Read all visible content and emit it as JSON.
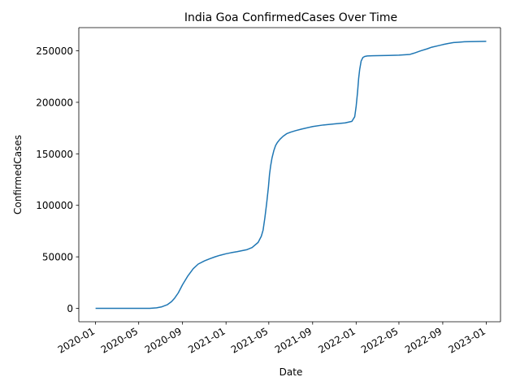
{
  "chart_data": {
    "type": "line",
    "title": "India Goa ConfirmedCases Over Time",
    "xlabel": "Date",
    "ylabel": "ConfirmedCases",
    "xlim": [
      "2019-11-15",
      "2023-02-10"
    ],
    "ylim": [
      -13000,
      272500
    ],
    "grid": false,
    "legend": "none",
    "x_ticks": [
      "2020-01",
      "2020-05",
      "2020-09",
      "2021-01",
      "2021-05",
      "2021-09",
      "2022-01",
      "2022-05",
      "2022-09",
      "2023-01"
    ],
    "y_ticks": [
      0,
      50000,
      100000,
      150000,
      200000,
      250000
    ],
    "line_color": "#1f77b4",
    "series": [
      {
        "x": [
          "2020-01-01",
          "2020-03-01",
          "2020-05-15",
          "2020-06-01",
          "2020-06-20",
          "2020-07-05",
          "2020-07-20",
          "2020-08-01",
          "2020-08-10",
          "2020-08-20",
          "2020-09-01",
          "2020-09-15",
          "2020-10-01",
          "2020-10-15",
          "2020-11-01",
          "2020-11-15",
          "2020-12-01",
          "2020-12-15",
          "2021-01-01",
          "2021-01-15",
          "2021-02-01",
          "2021-02-15",
          "2021-03-01",
          "2021-03-15",
          "2021-04-01",
          "2021-04-10",
          "2021-04-15",
          "2021-04-20",
          "2021-04-25",
          "2021-04-30",
          "2021-05-03",
          "2021-05-06",
          "2021-05-10",
          "2021-05-15",
          "2021-05-20",
          "2021-05-25",
          "2021-06-01",
          "2021-06-10",
          "2021-06-20",
          "2021-07-01",
          "2021-07-15",
          "2021-08-01",
          "2021-09-01",
          "2021-10-01",
          "2021-11-01",
          "2021-12-01",
          "2021-12-20",
          "2021-12-28",
          "2022-01-01",
          "2022-01-05",
          "2022-01-08",
          "2022-01-11",
          "2022-01-15",
          "2022-01-20",
          "2022-01-25",
          "2022-02-01",
          "2022-02-15",
          "2022-03-01",
          "2022-04-01",
          "2022-05-01",
          "2022-06-01",
          "2022-06-15",
          "2022-07-01",
          "2022-07-20",
          "2022-08-01",
          "2022-08-20",
          "2022-09-01",
          "2022-09-15",
          "2022-10-01",
          "2022-10-15",
          "2022-11-01",
          "2022-12-01",
          "2023-01-01"
        ],
        "y": [
          0,
          0,
          0,
          0,
          500,
          1500,
          3500,
          6500,
          10000,
          15000,
          23000,
          31000,
          38500,
          43000,
          46000,
          48000,
          50000,
          51500,
          53000,
          54000,
          55000,
          56000,
          57000,
          59000,
          64000,
          70000,
          76000,
          88000,
          102000,
          118000,
          130000,
          138000,
          146000,
          153000,
          158000,
          161000,
          164000,
          167000,
          169500,
          171000,
          172500,
          174000,
          176500,
          178000,
          179000,
          180000,
          181500,
          186000,
          196000,
          210000,
          223000,
          232000,
          240000,
          243500,
          244500,
          245000,
          245200,
          245300,
          245500,
          245800,
          246500,
          248000,
          250000,
          252000,
          253500,
          255000,
          256000,
          257000,
          258000,
          258300,
          258800,
          259000,
          259200
        ]
      }
    ]
  }
}
